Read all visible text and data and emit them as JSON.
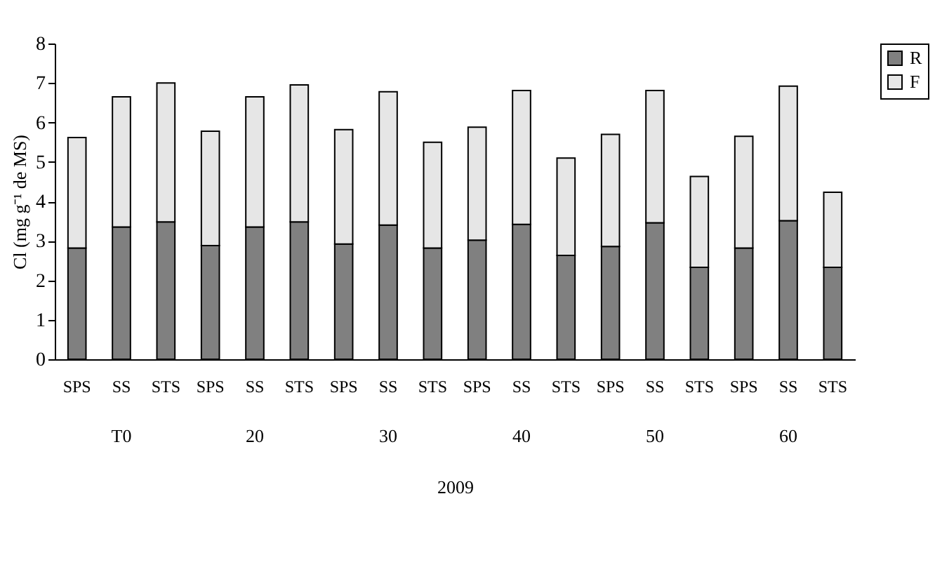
{
  "chart_data": {
    "type": "bar",
    "stacked": true,
    "ylabel": "Cl (mg g⁻¹ de MS)",
    "xlabel": "2009",
    "categories": [
      "SPS",
      "SS",
      "STS",
      "SPS",
      "SS",
      "STS",
      "SPS",
      "SS",
      "STS",
      "SPS",
      "SS",
      "STS",
      "SPS",
      "SS",
      "STS",
      "SPS",
      "SS",
      "STS"
    ],
    "annotations": [
      "T0",
      "20",
      "30",
      "40",
      "50",
      "60"
    ],
    "series": [
      {
        "name": "R",
        "color": "#808080",
        "values": [
          2.82,
          3.35,
          3.48,
          2.88,
          3.35,
          3.48,
          2.92,
          3.4,
          2.82,
          3.02,
          3.42,
          2.63,
          2.86,
          3.46,
          2.33,
          2.82,
          3.51,
          2.33
        ]
      },
      {
        "name": "F",
        "color": "#e6e6e6",
        "values": [
          2.8,
          3.3,
          3.52,
          2.9,
          3.3,
          3.47,
          2.9,
          3.38,
          2.68,
          2.86,
          3.39,
          2.47,
          2.84,
          3.35,
          2.3,
          2.83,
          3.41,
          1.9
        ]
      }
    ],
    "ylim": [
      0,
      8
    ],
    "yticks": [
      0,
      1,
      2,
      3,
      4,
      5,
      6,
      7,
      8
    ],
    "grid": false,
    "legend": "top right"
  }
}
